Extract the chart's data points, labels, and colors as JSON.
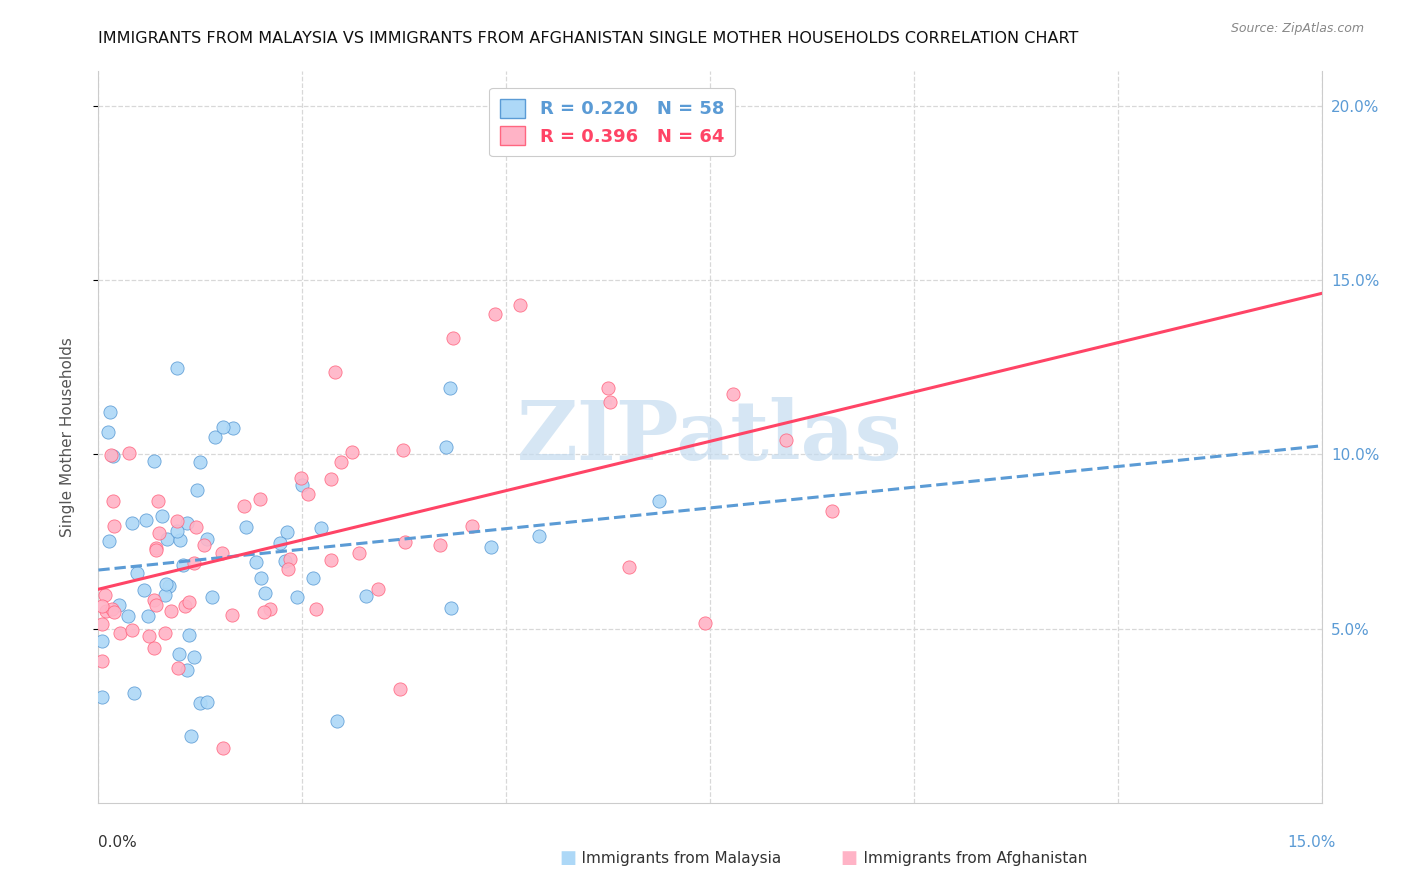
{
  "title": "IMMIGRANTS FROM MALAYSIA VS IMMIGRANTS FROM AFGHANISTAN SINGLE MOTHER HOUSEHOLDS CORRELATION CHART",
  "source": "Source: ZipAtlas.com",
  "ylabel": "Single Mother Households",
  "xlim": [
    0.0,
    0.15
  ],
  "ylim": [
    0.0,
    0.21
  ],
  "yticks": [
    0.05,
    0.1,
    0.15,
    0.2
  ],
  "ytick_labels": [
    "5.0%",
    "10.0%",
    "15.0%",
    "20.0%"
  ],
  "xtick_vals": [
    0.0,
    0.025,
    0.05,
    0.075,
    0.1,
    0.125,
    0.15
  ],
  "background_color": "#ffffff",
  "grid_color": "#d8d8d8",
  "axis_label_color": "#5b9bd5",
  "malaysia_scatter_color": "#add8f7",
  "afghanistan_scatter_color": "#ffb3c6",
  "malaysia_edge_color": "#5b9bd5",
  "afghanistan_edge_color": "#ff6680",
  "malaysia_line_color": "#5b9bd5",
  "afghanistan_line_color": "#ff4466",
  "watermark": "ZIPatlas",
  "watermark_color": "#c5dcf0",
  "malaysia_N": 58,
  "afghanistan_N": 64,
  "malaysia_R": 0.22,
  "afghanistan_R": 0.396,
  "malaysia_seed": 7,
  "afghanistan_seed": 13,
  "title_fontsize": 11.5,
  "source_fontsize": 9,
  "tick_fontsize": 11,
  "ylabel_fontsize": 11
}
